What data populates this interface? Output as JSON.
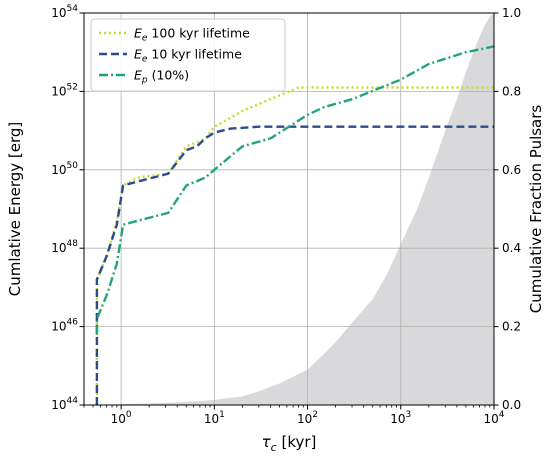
{
  "chart_data": {
    "type": "line",
    "xlabel_symbol": "τ",
    "xlabel_sub": "c",
    "xlabel_unit": " [kyr]",
    "ylabel_left": "Cumlative Energy [erg]",
    "ylabel_right": "Cumulative Fraction Pulsars",
    "x_scale": "log",
    "y_left_scale": "log",
    "xlim": [
      0.4,
      10000
    ],
    "ylim_left": [
      1e+44,
      1e+54
    ],
    "ylim_right": [
      0.0,
      1.0
    ],
    "grid": true,
    "legend_placement": "top-left",
    "x_ticks": [
      {
        "base": "10",
        "exp": "0",
        "value": 1
      },
      {
        "base": "10",
        "exp": "1",
        "value": 10
      },
      {
        "base": "10",
        "exp": "2",
        "value": 100
      },
      {
        "base": "10",
        "exp": "3",
        "value": 1000
      },
      {
        "base": "10",
        "exp": "4",
        "value": 10000
      }
    ],
    "y_left_ticks": [
      {
        "base": "10",
        "exp": "44",
        "value": 44
      },
      {
        "base": "10",
        "exp": "46",
        "value": 46
      },
      {
        "base": "10",
        "exp": "48",
        "value": 48
      },
      {
        "base": "10",
        "exp": "50",
        "value": 50
      },
      {
        "base": "10",
        "exp": "52",
        "value": 52
      },
      {
        "base": "10",
        "exp": "54",
        "value": 54
      }
    ],
    "y_right_ticks": [
      "0.0",
      "0.2",
      "0.4",
      "0.6",
      "0.8",
      "1.0"
    ],
    "series": [
      {
        "name_symbol": "E",
        "name_sub": "e",
        "name_rest": " 100 kyr lifetime",
        "color": "#c8d92a",
        "dash": "dotted",
        "x": [
          0.55,
          0.55,
          0.55,
          0.7,
          0.9,
          1.05,
          1.5,
          3.2,
          5,
          6.5,
          8,
          10,
          12,
          20,
          40,
          80,
          100,
          10000
        ],
        "y_log10": [
          44,
          46.2,
          47.2,
          47.8,
          48.7,
          49.6,
          49.8,
          49.9,
          50.6,
          50.7,
          50.8,
          51.1,
          51.2,
          51.5,
          51.8,
          52.1,
          52.1,
          52.1
        ]
      },
      {
        "name_symbol": "E",
        "name_sub": "e",
        "name_rest": " 10 kyr lifetime",
        "color": "#2c4c87",
        "dash": "dashed",
        "x": [
          0.55,
          0.55,
          0.55,
          0.7,
          0.9,
          1.05,
          1.5,
          3.2,
          5,
          6.5,
          8,
          10,
          15,
          30,
          10000
        ],
        "y_log10": [
          44,
          46.2,
          47.2,
          47.8,
          48.6,
          49.6,
          49.7,
          49.9,
          50.5,
          50.6,
          50.8,
          50.95,
          51.05,
          51.1,
          51.1
        ]
      },
      {
        "name_symbol": "E",
        "name_sub": "p",
        "name_rest": " (10%)",
        "color": "#21a37e",
        "dash": "dashdot",
        "x": [
          0.55,
          0.55,
          0.7,
          0.9,
          1.05,
          1.5,
          3.2,
          5,
          8,
          10,
          20,
          40,
          100,
          150,
          300,
          1000,
          2000,
          5000,
          8000,
          10000
        ],
        "y_log10": [
          45.8,
          46.2,
          46.8,
          47.6,
          48.6,
          48.7,
          48.9,
          49.6,
          49.8,
          50.0,
          50.6,
          50.8,
          51.4,
          51.6,
          51.8,
          52.3,
          52.7,
          53.0,
          53.1,
          53.15
        ]
      }
    ],
    "fraction_area": {
      "color": "#d9d9db",
      "x": [
        0.55,
        1,
        2,
        5,
        10,
        20,
        30,
        50,
        100,
        150,
        200,
        300,
        500,
        700,
        1000,
        1500,
        2000,
        3000,
        4000,
        5000,
        6000,
        7000,
        8000,
        9000,
        10000
      ],
      "y": [
        0.0,
        0.002,
        0.004,
        0.008,
        0.013,
        0.022,
        0.035,
        0.055,
        0.09,
        0.13,
        0.16,
        0.21,
        0.27,
        0.33,
        0.41,
        0.5,
        0.58,
        0.7,
        0.78,
        0.85,
        0.9,
        0.94,
        0.97,
        0.99,
        1.0
      ]
    }
  }
}
